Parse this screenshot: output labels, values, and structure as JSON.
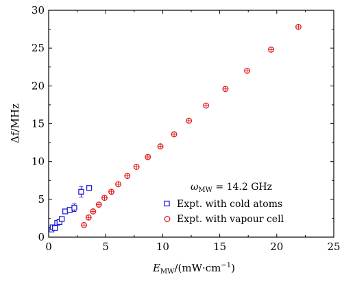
{
  "chart_data": {
    "type": "scatter",
    "xlabel": {
      "main": "E",
      "sub": "MW",
      "rest": "/(mW·cm",
      "sup": "−1",
      "close": ")"
    },
    "ylabel": "Δf/MHz",
    "xlim": [
      0,
      25
    ],
    "ylim": [
      0,
      30
    ],
    "xticks": [
      0,
      5,
      10,
      15,
      20,
      25
    ],
    "yticks": [
      0,
      5,
      10,
      15,
      20,
      25,
      30
    ],
    "grid": false,
    "legend_position": "bottom-right",
    "annotation": {
      "main": "ω",
      "sub": "MW",
      "rest": " = 14.2 GHz"
    },
    "series": [
      {
        "name": "Expt. with cold atoms",
        "marker": "square",
        "color": "#1f1fd6",
        "points": [
          {
            "x": 0.25,
            "y": 1.0,
            "err": 0.2
          },
          {
            "x": 0.35,
            "y": 1.3,
            "err": 0.2
          },
          {
            "x": 0.55,
            "y": 1.2,
            "err": 0.2
          },
          {
            "x": 0.75,
            "y": 1.9,
            "err": 0.2
          },
          {
            "x": 0.95,
            "y": 2.0,
            "err": 0.2
          },
          {
            "x": 1.15,
            "y": 2.4,
            "err": 0.2
          },
          {
            "x": 1.45,
            "y": 3.4,
            "err": 0.3
          },
          {
            "x": 1.85,
            "y": 3.6,
            "err": 0.3
          },
          {
            "x": 2.25,
            "y": 3.9,
            "err": 0.5
          },
          {
            "x": 2.85,
            "y": 6.0,
            "err": 0.7
          },
          {
            "x": 3.55,
            "y": 6.5,
            "err": 0.2
          }
        ]
      },
      {
        "name": "Expt. with vapour cell",
        "marker": "circle-plus",
        "color": "#e02020",
        "points": [
          {
            "x": 3.1,
            "y": 1.6
          },
          {
            "x": 3.5,
            "y": 2.6
          },
          {
            "x": 3.9,
            "y": 3.4
          },
          {
            "x": 4.4,
            "y": 4.3
          },
          {
            "x": 4.9,
            "y": 5.2
          },
          {
            "x": 5.5,
            "y": 6.0
          },
          {
            "x": 6.1,
            "y": 7.0
          },
          {
            "x": 6.9,
            "y": 8.1
          },
          {
            "x": 7.7,
            "y": 9.3
          },
          {
            "x": 8.7,
            "y": 10.6
          },
          {
            "x": 9.8,
            "y": 12.0
          },
          {
            "x": 11.0,
            "y": 13.6
          },
          {
            "x": 12.3,
            "y": 15.4
          },
          {
            "x": 13.8,
            "y": 17.4
          },
          {
            "x": 15.5,
            "y": 19.6
          },
          {
            "x": 17.4,
            "y": 22.0
          },
          {
            "x": 19.5,
            "y": 24.8
          },
          {
            "x": 21.9,
            "y": 27.8
          }
        ]
      }
    ]
  }
}
